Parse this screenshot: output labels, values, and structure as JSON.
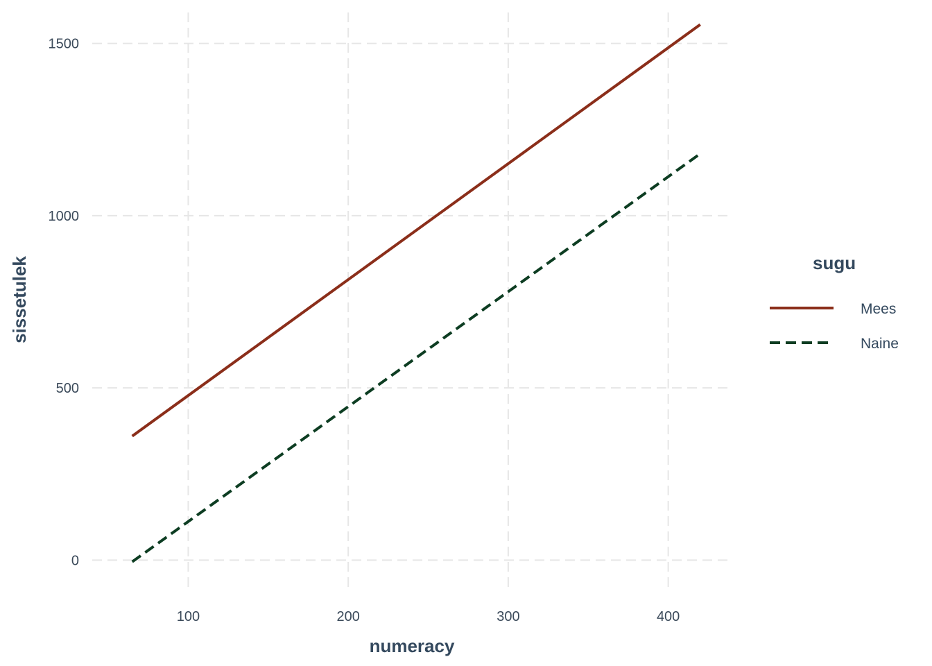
{
  "chart_data": {
    "type": "line",
    "xlabel": "numeracy",
    "ylabel": "sissetulek",
    "xlim": [
      40,
      437
    ],
    "ylim": [
      -90,
      1590
    ],
    "x_ticks": [
      100,
      200,
      300,
      400
    ],
    "y_ticks": [
      0,
      500,
      1000,
      1500
    ],
    "grid": true,
    "legend": {
      "title": "sugu",
      "position": "right"
    },
    "series": [
      {
        "name": "Mees",
        "color": "#8b2e1a",
        "dash": "solid",
        "x": [
          65,
          420
        ],
        "y": [
          360,
          1555
        ]
      },
      {
        "name": "Naine",
        "color": "#0d3d22",
        "dash": "dashed",
        "x": [
          65,
          420
        ],
        "y": [
          -5,
          1180
        ]
      }
    ]
  }
}
